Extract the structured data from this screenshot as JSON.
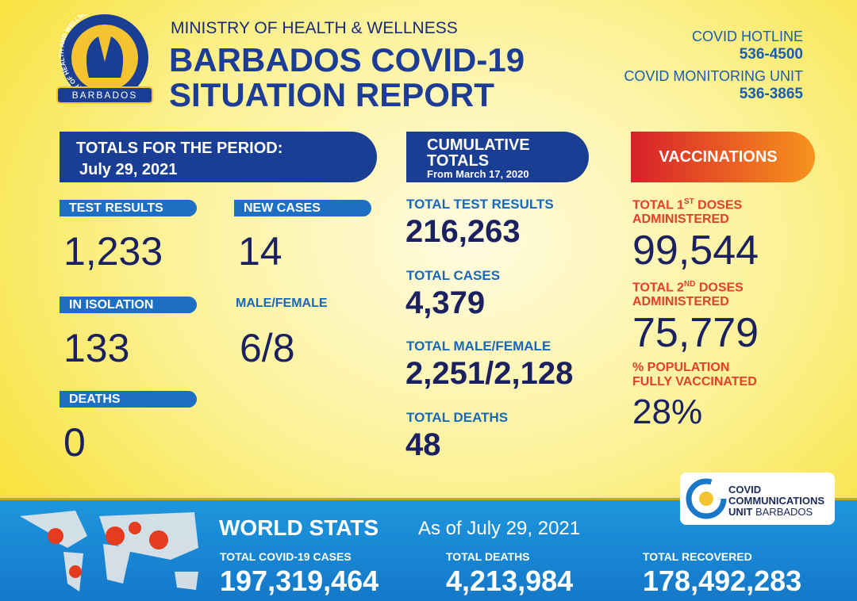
{
  "header": {
    "logo_ring": "MINISTRY OF HEALTH AND WELLNESS",
    "logo_banner": "BARBADOS",
    "ministry": "MINISTRY OF HEALTH & WELLNESS",
    "title_line1": "BARBADOS COVID-19",
    "title_line2": "SITUATION REPORT"
  },
  "contacts": [
    {
      "label": "COVID HOTLINE",
      "number": "536-4500"
    },
    {
      "label": "COVID MONITORING UNIT",
      "number": "536-3865"
    }
  ],
  "period": {
    "title": "TOTALS FOR THE PERIOD:",
    "date": "July 29, 2021",
    "stats": [
      {
        "label": "TEST RESULTS",
        "value": "1,233"
      },
      {
        "label": "NEW CASES",
        "value": "14"
      },
      {
        "label": "IN ISOLATION",
        "value": "133"
      },
      {
        "label": "MALE/FEMALE",
        "value": "6/8"
      },
      {
        "label": "DEATHS",
        "value": "0"
      }
    ]
  },
  "cumulative": {
    "title_line1": "CUMULATIVE",
    "title_line2": "TOTALS",
    "since": "From March 17, 2020",
    "items": [
      {
        "label": "TOTAL TEST RESULTS",
        "value": "216,263"
      },
      {
        "label": "TOTAL CASES",
        "value": "4,379"
      },
      {
        "label": "TOTAL MALE/FEMALE",
        "value": "2,251/2,128"
      },
      {
        "label": "TOTAL DEATHS",
        "value": "48"
      }
    ]
  },
  "vaccinations": {
    "title": "VACCINATIONS",
    "items": [
      {
        "line1_pre": "TOTAL 1",
        "line1_sup": "ST",
        "line1_post": "DOSES",
        "line2": "ADMINISTERED",
        "value": "99,544"
      },
      {
        "line1_pre": "TOTAL 2",
        "line1_sup": "ND",
        "line1_post": "DOSES",
        "line2": "ADMINISTERED",
        "value": "75,779"
      },
      {
        "line1_pre": "% POPULATION",
        "line2": "FULLY VACCINATED",
        "value": "28%"
      }
    ]
  },
  "comms": {
    "line1": "COVID",
    "line2": "COMMUNICATIONS",
    "line3": "UNIT",
    "line3_rest": "BARBADOS"
  },
  "world": {
    "title": "WORLD STATS",
    "as_of": "As of July 29, 2021",
    "items": [
      {
        "label": "TOTAL COVID-19 CASES",
        "value": "197,319,464"
      },
      {
        "label": "TOTAL DEATHS",
        "value": "4,213,984"
      },
      {
        "label": "TOTAL RECOVERED",
        "value": "178,492,283"
      }
    ]
  }
}
